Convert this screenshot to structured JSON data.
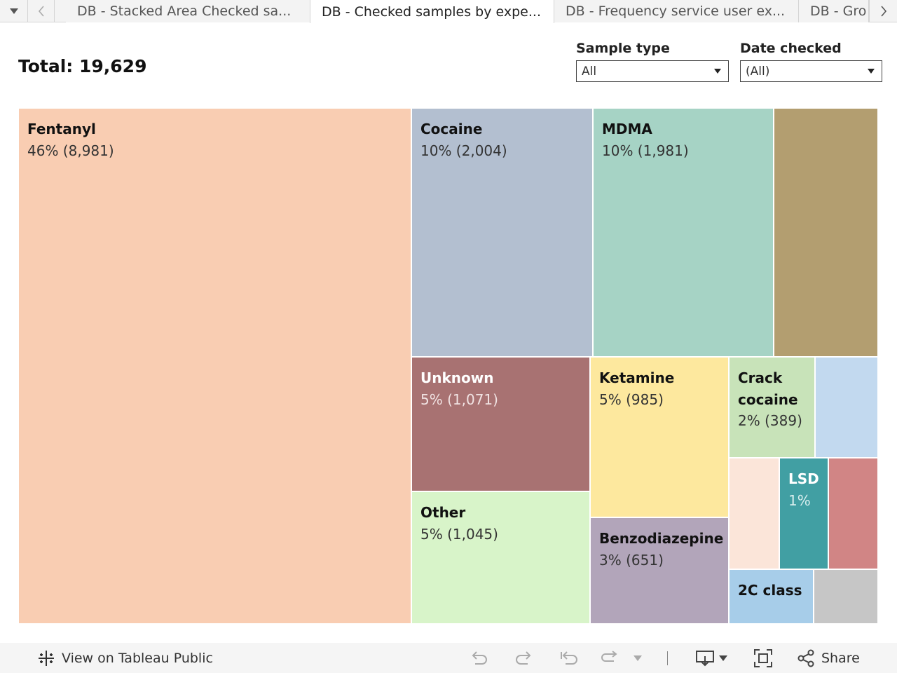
{
  "tabs": {
    "menu_icon": "dropdown-caret",
    "prev_icon": "chevron-left",
    "next_icon": "chevron-right",
    "items": [
      {
        "label": "DB - Stacked Area Checked sa..."
      },
      {
        "label": "DB - Checked samples by expe..."
      },
      {
        "label": "DB - Frequency service user ex..."
      },
      {
        "label": "DB - Gro"
      }
    ]
  },
  "header": {
    "total": "Total: 19,629"
  },
  "filters": {
    "sample_type": {
      "label": "Sample type",
      "value": "All"
    },
    "date_checked": {
      "label": "Date checked",
      "value": "(All)"
    }
  },
  "chart_data": {
    "type": "treemap",
    "title": "Total: 19,629",
    "items": [
      {
        "name": "Fentanyl",
        "label": "46% (8,981)",
        "percent": 46,
        "count": 8981,
        "color": "#f9cdb2"
      },
      {
        "name": "Cocaine",
        "label": "10% (2,004)",
        "percent": 10,
        "count": 2004,
        "color": "#b3bfd0"
      },
      {
        "name": "MDMA",
        "label": "10% (1,981)",
        "percent": 10,
        "count": 1981,
        "color": "#a6d3c5"
      },
      {
        "name": "",
        "label": "",
        "color": "#b39e70"
      },
      {
        "name": "Unknown",
        "label": "5% (1,071)",
        "percent": 5,
        "count": 1071,
        "color": "#a87272"
      },
      {
        "name": "Other",
        "label": "5% (1,045)",
        "percent": 5,
        "count": 1045,
        "color": "#d8f4c9"
      },
      {
        "name": "Ketamine",
        "label": "5% (985)",
        "percent": 5,
        "count": 985,
        "color": "#fde89e"
      },
      {
        "name": "Benzodiazepine",
        "label": "3% (651)",
        "percent": 3,
        "count": 651,
        "color": "#b2a5ba"
      },
      {
        "name": "Crack cocaine",
        "label": "2% (389)",
        "percent": 2,
        "count": 389,
        "color": "#c8e3b9"
      },
      {
        "name": "",
        "label": "",
        "color": "#c2d9ef"
      },
      {
        "name": "",
        "label": "",
        "color": "#fbe5d9"
      },
      {
        "name": "LSD",
        "label": "1%",
        "percent": 1,
        "color": "#419fa3"
      },
      {
        "name": "",
        "label": "",
        "color": "#d18585"
      },
      {
        "name": "2C class",
        "label": "",
        "color": "#a7cde9"
      },
      {
        "name": "",
        "label": "",
        "color": "#c6c6c6"
      }
    ]
  },
  "toolbar": {
    "view_label": "View on Tableau Public",
    "share_label": "Share",
    "icons": [
      "tableau-logo",
      "undo",
      "redo",
      "revert",
      "refresh",
      "download",
      "fullscreen",
      "share"
    ]
  }
}
